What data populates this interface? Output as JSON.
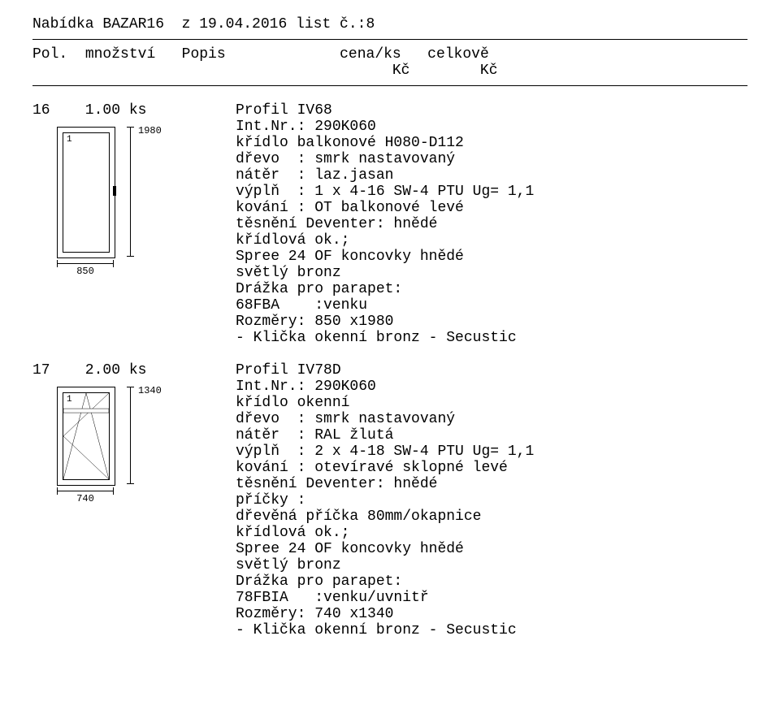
{
  "header": {
    "title": "Nabídka BAZAR16  z 19.04.2016 list č.:8"
  },
  "columns": {
    "pol": "Pol.",
    "mnozstvi": "množství",
    "popis": "Popis",
    "cenaks": "cena/ks",
    "celkove": "celkově",
    "kc1": "Kč",
    "kc2": "Kč"
  },
  "items": [
    {
      "pol": "16",
      "qty": "1.00 ks",
      "diagram": {
        "width_label": "850",
        "height_label": "1980",
        "inner_label": "1",
        "outer_w": 70,
        "outer_h": 160,
        "type": "door"
      },
      "title": "Profil IV68",
      "lines": [
        "Int.Nr.: 290K060",
        "křídlo balkonové H080-D112",
        "dřevo  : smrk nastavovaný",
        "nátěr  : laz.jasan",
        "výplň  : 1 x 4-16 SW-4 PTU Ug= 1,1",
        "kování : OT balkonové levé",
        "těsnění Deventer: hnědé",
        "křídlová ok.;",
        "Spree 24 OF koncovky hnědé",
        "světlý bronz",
        "Drážka pro parapet:",
        "68FBA    :venku",
        "Rozměry: 850 x1980",
        "- Klička okenní bronz - Secustic"
      ]
    },
    {
      "pol": "17",
      "qty": "2.00 ks",
      "diagram": {
        "width_label": "740",
        "height_label": "1340",
        "inner_label": "1",
        "outer_w": 70,
        "outer_h": 120,
        "type": "window"
      },
      "title": "Profil IV78D",
      "lines": [
        "Int.Nr.: 290K060",
        "křídlo okenní",
        "dřevo  : smrk nastavovaný",
        "nátěr  : RAL žlutá",
        "výplň  : 2 x 4-18 SW-4 PTU Ug= 1,1",
        "kování : otevíravé sklopné levé",
        "těsnění Deventer: hnědé",
        "příčky :",
        "dřevěná příčka 80mm/okapnice",
        "křídlová ok.;",
        "Spree 24 OF koncovky hnědé",
        "světlý bronz",
        "Drážka pro parapet:",
        "78FBIA   :venku/uvnitř",
        "Rozměry: 740 x1340",
        "- Klička okenní bronz - Secustic"
      ]
    }
  ]
}
